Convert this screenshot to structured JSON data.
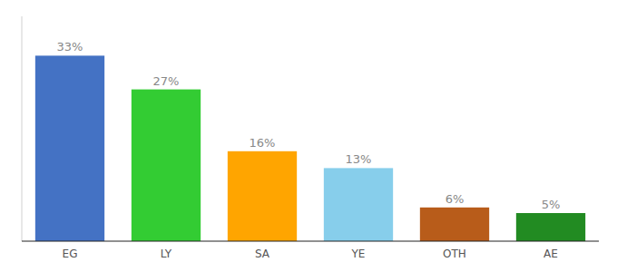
{
  "chart_data": {
    "type": "bar",
    "categories": [
      "EG",
      "LY",
      "SA",
      "YE",
      "OTH",
      "AE"
    ],
    "values": [
      33,
      27,
      16,
      13,
      6,
      5
    ],
    "value_labels": [
      "33%",
      "27%",
      "16%",
      "13%",
      "6%",
      "5%"
    ],
    "colors": [
      "#4472C4",
      "#33CC33",
      "#FFA500",
      "#87CEEB",
      "#B85C1A",
      "#228B22"
    ],
    "ylim": [
      0,
      40
    ],
    "data_labels": true,
    "tick_labels": "x"
  }
}
